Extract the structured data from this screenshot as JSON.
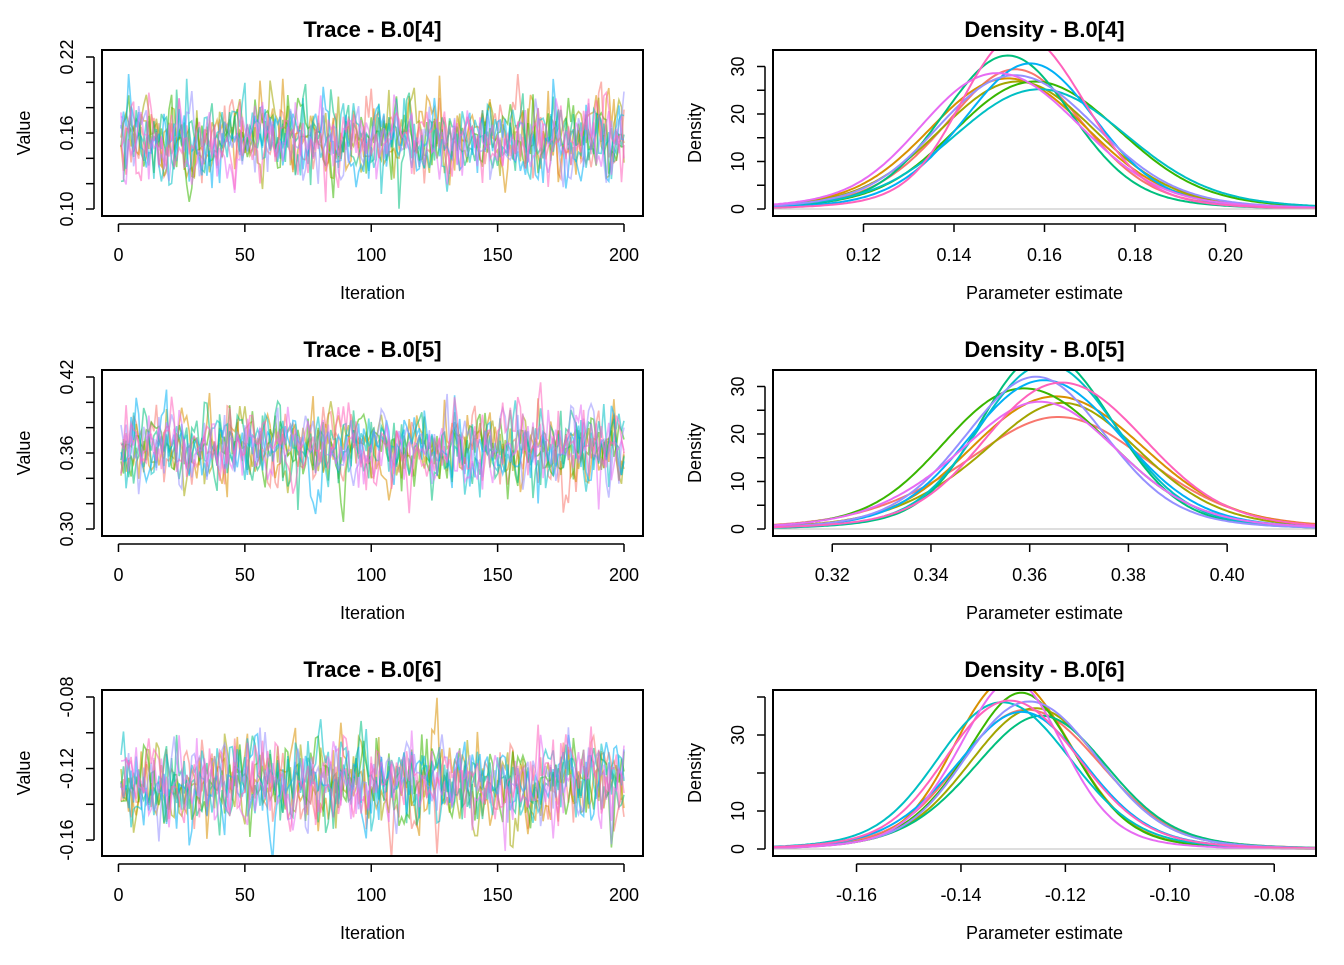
{
  "chart_data": [
    {
      "type": "line",
      "kind": "trace",
      "title": "Trace - B.0[4]",
      "xlabel": "Iteration",
      "ylabel": "Value",
      "xlim": [
        1,
        200
      ],
      "ylim": [
        0.1,
        0.22
      ],
      "xticks": [
        0,
        50,
        100,
        150,
        200
      ],
      "xtick_labels": [
        "0",
        "50",
        "100",
        "150",
        "200"
      ],
      "yticks": [
        0.1,
        0.12,
        0.14,
        0.16,
        0.18,
        0.2,
        0.22
      ],
      "ytick_labels": [
        "0.10",
        "",
        "",
        "0.16",
        "",
        "",
        "0.22"
      ],
      "chains": 10,
      "mean": 0.155,
      "sd": 0.016,
      "seed": 4
    },
    {
      "type": "line",
      "kind": "density",
      "title": "Density - B.0[4]",
      "xlabel": "Parameter estimate",
      "ylabel": "Density",
      "xlim": [
        0.1,
        0.22
      ],
      "ylim": [
        0,
        32
      ],
      "xticks": [
        0.12,
        0.14,
        0.16,
        0.18,
        0.2
      ],
      "xtick_labels": [
        "0.12",
        "0.14",
        "0.16",
        "0.18",
        "0.20"
      ],
      "yticks": [
        0,
        5,
        10,
        15,
        20,
        25,
        30
      ],
      "ytick_labels": [
        "0",
        "",
        "10",
        "",
        "20",
        "",
        "30"
      ],
      "chains": 10,
      "mean": 0.155,
      "sd": 0.016,
      "peak_densities": [
        27,
        24,
        24,
        23,
        29,
        22,
        28,
        24,
        24,
        31
      ],
      "seed": 4
    },
    {
      "type": "line",
      "kind": "trace",
      "title": "Trace - B.0[5]",
      "xlabel": "Iteration",
      "ylabel": "Value",
      "xlim": [
        1,
        200
      ],
      "ylim": [
        0.3,
        0.42
      ],
      "xticks": [
        0,
        50,
        100,
        150,
        200
      ],
      "xtick_labels": [
        "0",
        "50",
        "100",
        "150",
        "200"
      ],
      "yticks": [
        0.3,
        0.32,
        0.34,
        0.36,
        0.38,
        0.4,
        0.42
      ],
      "ytick_labels": [
        "0.30",
        "",
        "",
        "0.36",
        "",
        "",
        "0.42"
      ],
      "chains": 10,
      "mean": 0.364,
      "sd": 0.015,
      "seed": 5
    },
    {
      "type": "line",
      "kind": "density",
      "title": "Density - B.0[5]",
      "xlabel": "Parameter estimate",
      "ylabel": "Density",
      "xlim": [
        0.308,
        0.418
      ],
      "ylim": [
        0,
        32
      ],
      "xticks": [
        0.32,
        0.34,
        0.36,
        0.38,
        0.4
      ],
      "xtick_labels": [
        "0.32",
        "0.34",
        "0.36",
        "0.38",
        "0.40"
      ],
      "yticks": [
        0,
        5,
        10,
        15,
        20,
        25,
        30
      ],
      "ytick_labels": [
        "0",
        "",
        "10",
        "",
        "20",
        "",
        "30"
      ],
      "chains": 10,
      "mean": 0.364,
      "sd": 0.015,
      "peak_densities": [
        22,
        24,
        25,
        25,
        31.5,
        30,
        27,
        29,
        25,
        26
      ],
      "seed": 5
    },
    {
      "type": "line",
      "kind": "trace",
      "title": "Trace - B.0[6]",
      "xlabel": "Iteration",
      "ylabel": "Value",
      "xlim": [
        1,
        200
      ],
      "ylim": [
        -0.165,
        -0.08
      ],
      "xticks": [
        0,
        50,
        100,
        150,
        200
      ],
      "xtick_labels": [
        "0",
        "50",
        "100",
        "150",
        "200"
      ],
      "yticks": [
        -0.16,
        -0.14,
        -0.12,
        -0.1,
        -0.08
      ],
      "ytick_labels": [
        "-0.16",
        "",
        "-0.12",
        "",
        "-0.08"
      ],
      "chains": 10,
      "mean": -0.128,
      "sd": 0.012,
      "seed": 6
    },
    {
      "type": "line",
      "kind": "density",
      "title": "Density - B.0[6]",
      "xlabel": "Parameter estimate",
      "ylabel": "Density",
      "xlim": [
        -0.176,
        -0.072
      ],
      "ylim": [
        0,
        40
      ],
      "xticks": [
        -0.16,
        -0.14,
        -0.12,
        -0.1,
        -0.08
      ],
      "xtick_labels": [
        "-0.16",
        "-0.14",
        "-0.12",
        "-0.10",
        "-0.08"
      ],
      "yticks": [
        0,
        10,
        20,
        30,
        40
      ],
      "ytick_labels": [
        "0",
        "10",
        "",
        "30",
        ""
      ],
      "chains": 10,
      "mean": -0.128,
      "sd": 0.012,
      "peak_densities": [
        31,
        38,
        33,
        38.5,
        32,
        33,
        33,
        33,
        41,
        33
      ],
      "seed": 6
    }
  ],
  "chain_colors": [
    "#F8766D",
    "#D89000",
    "#A3A500",
    "#39B600",
    "#00BF7D",
    "#00BFC4",
    "#00B0F6",
    "#9590FF",
    "#E76BF3",
    "#FF62BC"
  ]
}
